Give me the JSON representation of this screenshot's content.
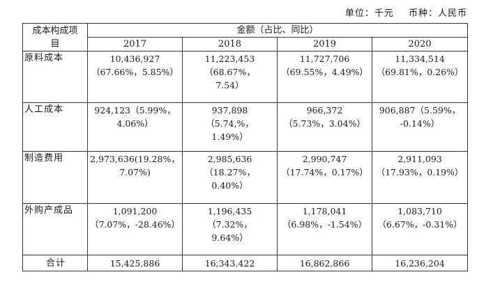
{
  "unit_line": {
    "unit": "单位：千元",
    "currency": "币种：人民币"
  },
  "table": {
    "header_label": "成本构成项\n目",
    "header_amount": "金额（占比、同比）",
    "years": [
      "2017",
      "2018",
      "2019",
      "2020"
    ],
    "rows": [
      {
        "item": "原料成本",
        "values": [
          "10,436,927\n（67.66%，5.85%）",
          "11,223,453\n（68.67%，\n7.54）",
          "11,727,706\n（69.55%，4.49%）",
          "11,334,514\n（69.81%，0.26%）"
        ]
      },
      {
        "item": "人工成本",
        "values": [
          "924,123（5.99%，\n4.06%）",
          "937,898\n（5.74,%，\n1.49%）",
          "966,372\n（5.73%，3.04%）",
          "906,887（5.59%，\n-0.14%）"
        ]
      },
      {
        "item": "制造费用",
        "values": [
          "2,973,636(19.28%，\n7.07%)",
          "2,985,636\n（18.27%，\n0.40%）",
          "2,990,747\n（17.74%，0.17%）",
          "2,911,093\n（17.93%，0.19%）"
        ]
      },
      {
        "item": "外购产成品",
        "values": [
          "1,091,200\n（7.07%，-28.46%）",
          "1,196,435\n（7.32%，\n9.64%）",
          "1,178,041\n（6.98%，-1.54%）",
          "1,083,710\n（6.67%，-0.31%）"
        ]
      }
    ],
    "total": {
      "item": "合计",
      "values": [
        "15,425,886",
        "16,343,422",
        "16,862,866",
        "16,236,204"
      ]
    }
  }
}
